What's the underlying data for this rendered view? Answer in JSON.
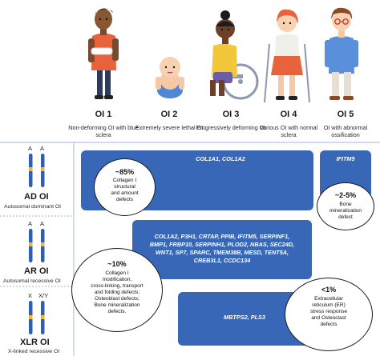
{
  "types": [
    {
      "name": "OI 1",
      "desc": "Non-deforming OI with blue sclera"
    },
    {
      "name": "OI 2",
      "desc": "Extremely severe lethal OI"
    },
    {
      "name": "OI 3",
      "desc": "Progressively deforming OI"
    },
    {
      "name": "OI 4",
      "desc": "Various OI with normal sclera"
    },
    {
      "name": "OI 5",
      "desc": "OI with abnormal ossification"
    }
  ],
  "inheritance": [
    {
      "code": "AD OI",
      "label": "Autosomal dominant OI",
      "alleles": [
        "A",
        "A"
      ]
    },
    {
      "code": "AR OI",
      "label": "Autosomal recessive OI",
      "alleles": [
        "A",
        "A"
      ]
    },
    {
      "code": "XLR OI",
      "label": "X-linked recessive OI",
      "alleles": [
        "X",
        "X/Y"
      ]
    }
  ],
  "genes": {
    "ad_main": "COL1A1, COL1A2",
    "ad_ifitm5": "IFITM5",
    "ar_lines": [
      "COL1A2, P3H1, CRTAP, PPIB, IFITM5, SERPINF1,",
      "BMP1, FRBP10, SERPINH1, PLOD2, NBAS, SEC24D,",
      "WNT1, SP7, SPARC, TMEM38B, MESD, TENT5A,",
      "CREB3L1, CCDC134"
    ],
    "xlr": "MBTPS2, PLS3"
  },
  "callouts": {
    "c85": {
      "pct": "~85%",
      "text": [
        "Collagen I",
        "structural",
        "and amount",
        "defects"
      ]
    },
    "c25": {
      "pct": "~2-5%",
      "text": [
        "Bone",
        "mineralization",
        "defect"
      ]
    },
    "c10": {
      "pct": "~10%",
      "text": [
        "Collagen I",
        "modification,",
        "cross-linking, transport",
        "and folding defects;",
        "Osteoblast defects;",
        "Bone mineralization",
        "defects."
      ]
    },
    "c1": {
      "pct": "<1%",
      "text": [
        "Extracellular",
        "reticulum (ER)",
        "stress response",
        "and Osteoclast",
        "defects"
      ]
    }
  },
  "colors": {
    "gene_box": "#3767b6",
    "chromosome": "#2f5fb0",
    "chromosome_band": "#f2b82b",
    "divider": "#9fb7dd"
  }
}
